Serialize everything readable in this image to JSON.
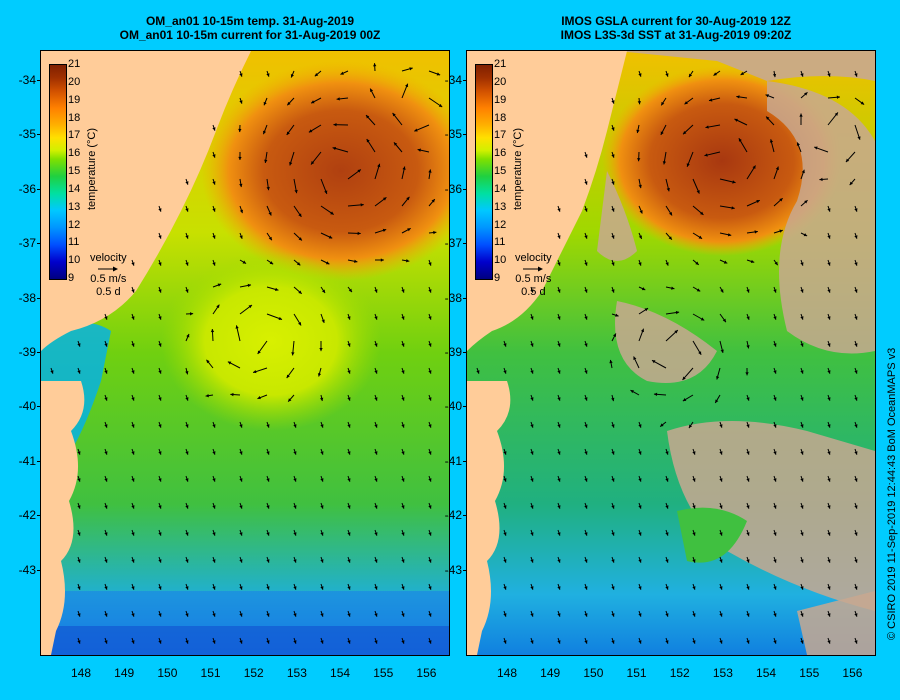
{
  "left_panel": {
    "title_line1": "OM_an01 10-15m temp. 31-Aug-2019",
    "title_line2": "OM_an01 10-15m current for 31-Aug-2019 00Z"
  },
  "right_panel": {
    "title_line1": "IMOS GSLA current for 30-Aug-2019 12Z",
    "title_line2": "IMOS L3S-3d SST at 31-Aug-2019 09:20Z"
  },
  "axes": {
    "lat_ticks": [
      "-34",
      "-35",
      "-36",
      "-37",
      "-38",
      "-39",
      "-40",
      "-41",
      "-42",
      "-43"
    ],
    "lon_ticks": [
      "148",
      "149",
      "150",
      "151",
      "152",
      "153",
      "154",
      "155",
      "156"
    ],
    "lat_values": [
      -34,
      -35,
      -36,
      -37,
      -38,
      -39,
      -40,
      -41,
      -42,
      -43
    ],
    "lon_values": [
      148,
      149,
      150,
      151,
      152,
      153,
      154,
      155,
      156
    ],
    "lat_range": [
      -33.45,
      -44.55
    ],
    "lon_range": [
      147.05,
      156.5
    ]
  },
  "colorbar": {
    "label": "temperature (°C)",
    "ticks": [
      "21",
      "20",
      "19",
      "18",
      "17",
      "16",
      "15",
      "14",
      "13",
      "12",
      "11",
      "10",
      "9"
    ],
    "range": [
      9,
      21
    ]
  },
  "legend": {
    "title": "velocity",
    "speed": "0.5 m/s",
    "duration": "0.5 d"
  },
  "credit": "© CSIRO 2019   11-Sep-2019 12:44:43 BoM OceanMAPS v3",
  "colors": {
    "background": "#00ccff",
    "land": "#ffcc99",
    "no_data": "#c8a890",
    "arrow": "#000000"
  }
}
